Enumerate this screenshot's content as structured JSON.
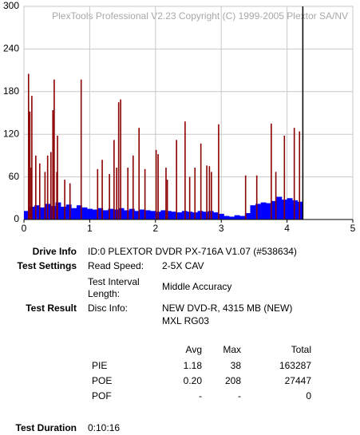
{
  "chart_data": {
    "type": "bar",
    "watermark": "PlexTools Professional V2.23 Copyright (C) 1999-2005 Plextor SA/NV",
    "xlim": [
      0,
      5
    ],
    "xticks": [
      0,
      1,
      2,
      3,
      4,
      5
    ],
    "ylim": [
      0,
      300
    ],
    "yticks": [
      0,
      60,
      120,
      180,
      240,
      300
    ],
    "grid": true,
    "series": [
      {
        "type": "bar",
        "color": "#0000ff",
        "x": [
          0,
          0.08,
          0.16,
          0.24,
          0.32,
          0.4,
          0.48,
          0.56,
          0.64,
          0.72,
          0.8,
          0.88,
          0.96,
          1.04,
          1.12,
          1.2,
          1.28,
          1.36,
          1.44,
          1.52,
          1.6,
          1.68,
          1.76,
          1.84,
          1.92,
          2,
          2.08,
          2.16,
          2.24,
          2.32,
          2.4,
          2.48,
          2.56,
          2.64,
          2.72,
          2.8,
          2.88,
          2.96,
          3.04,
          3.12,
          3.2,
          3.28,
          3.36,
          3.44,
          3.52,
          3.6,
          3.68,
          3.76,
          3.84,
          3.92,
          4,
          4.08,
          4.16
        ],
        "values": [
          12,
          18,
          20,
          17,
          22,
          19,
          24,
          18,
          21,
          16,
          20,
          17,
          15,
          14,
          16,
          13,
          15,
          14,
          16,
          13,
          15,
          12,
          14,
          13,
          12,
          11,
          13,
          12,
          11,
          10,
          12,
          11,
          10,
          12,
          11,
          12,
          10,
          8,
          5,
          4,
          6,
          5,
          9,
          20,
          22,
          24,
          23,
          26,
          32,
          28,
          30,
          27,
          25
        ]
      },
      {
        "type": "spike",
        "color": "#8b0000",
        "x": [
          0.07,
          0.09,
          0.11,
          0.12,
          0.18,
          0.24,
          0.32,
          0.36,
          0.41,
          0.44,
          0.46,
          0.5,
          0.51,
          0.62,
          0.7,
          0.87,
          1.12,
          1.19,
          1.3,
          1.37,
          1.41,
          1.44,
          1.47,
          1.58,
          1.66,
          1.75,
          1.84,
          2.01,
          2.04,
          2.16,
          2.18,
          2.32,
          2.45,
          2.52,
          2.6,
          2.69,
          2.78,
          2.82,
          2.85,
          2.96,
          3.37,
          3.54,
          3.76,
          3.83,
          3.96,
          4.11,
          4.19
        ],
        "values": [
          205,
          152,
          73,
          174,
          90,
          79,
          67,
          90,
          95,
          154,
          197,
          67,
          118,
          56,
          51,
          197,
          71,
          84,
          64,
          112,
          73,
          165,
          169,
          73,
          90,
          129,
          71,
          98,
          92,
          73,
          56,
          112,
          138,
          60,
          73,
          107,
          76,
          75,
          67,
          134,
          62,
          62,
          135,
          67,
          118,
          129,
          124
        ]
      }
    ],
    "end_marker": {
      "x": 4.24,
      "color": "#000000"
    }
  },
  "report": {
    "drive_info": {
      "label": "Drive Info",
      "value": "ID:0 PLEXTOR DVDR PX-716A V1.07 (#538634)"
    },
    "test_settings": {
      "label": "Test Settings",
      "rows": [
        [
          "Read Speed:",
          "2-5X CAV"
        ],
        [
          "Test Interval Length:",
          "Middle Accuracy"
        ]
      ]
    },
    "test_result": {
      "label": "Test Result",
      "key": "Disc Info:",
      "lines": [
        "NEW DVD-R, 4315 MB (NEW)",
        "MXL RG03"
      ]
    },
    "stats": {
      "header": [
        "Avg",
        "Max",
        "Total"
      ],
      "rows": [
        [
          "PIE",
          "1.18",
          "38",
          "163287"
        ],
        [
          "POE",
          "0.20",
          "208",
          "27447"
        ],
        [
          "POF",
          "-",
          "-",
          "0"
        ]
      ]
    },
    "test_duration": {
      "label": "Test Duration",
      "value": "0:10:16"
    }
  }
}
